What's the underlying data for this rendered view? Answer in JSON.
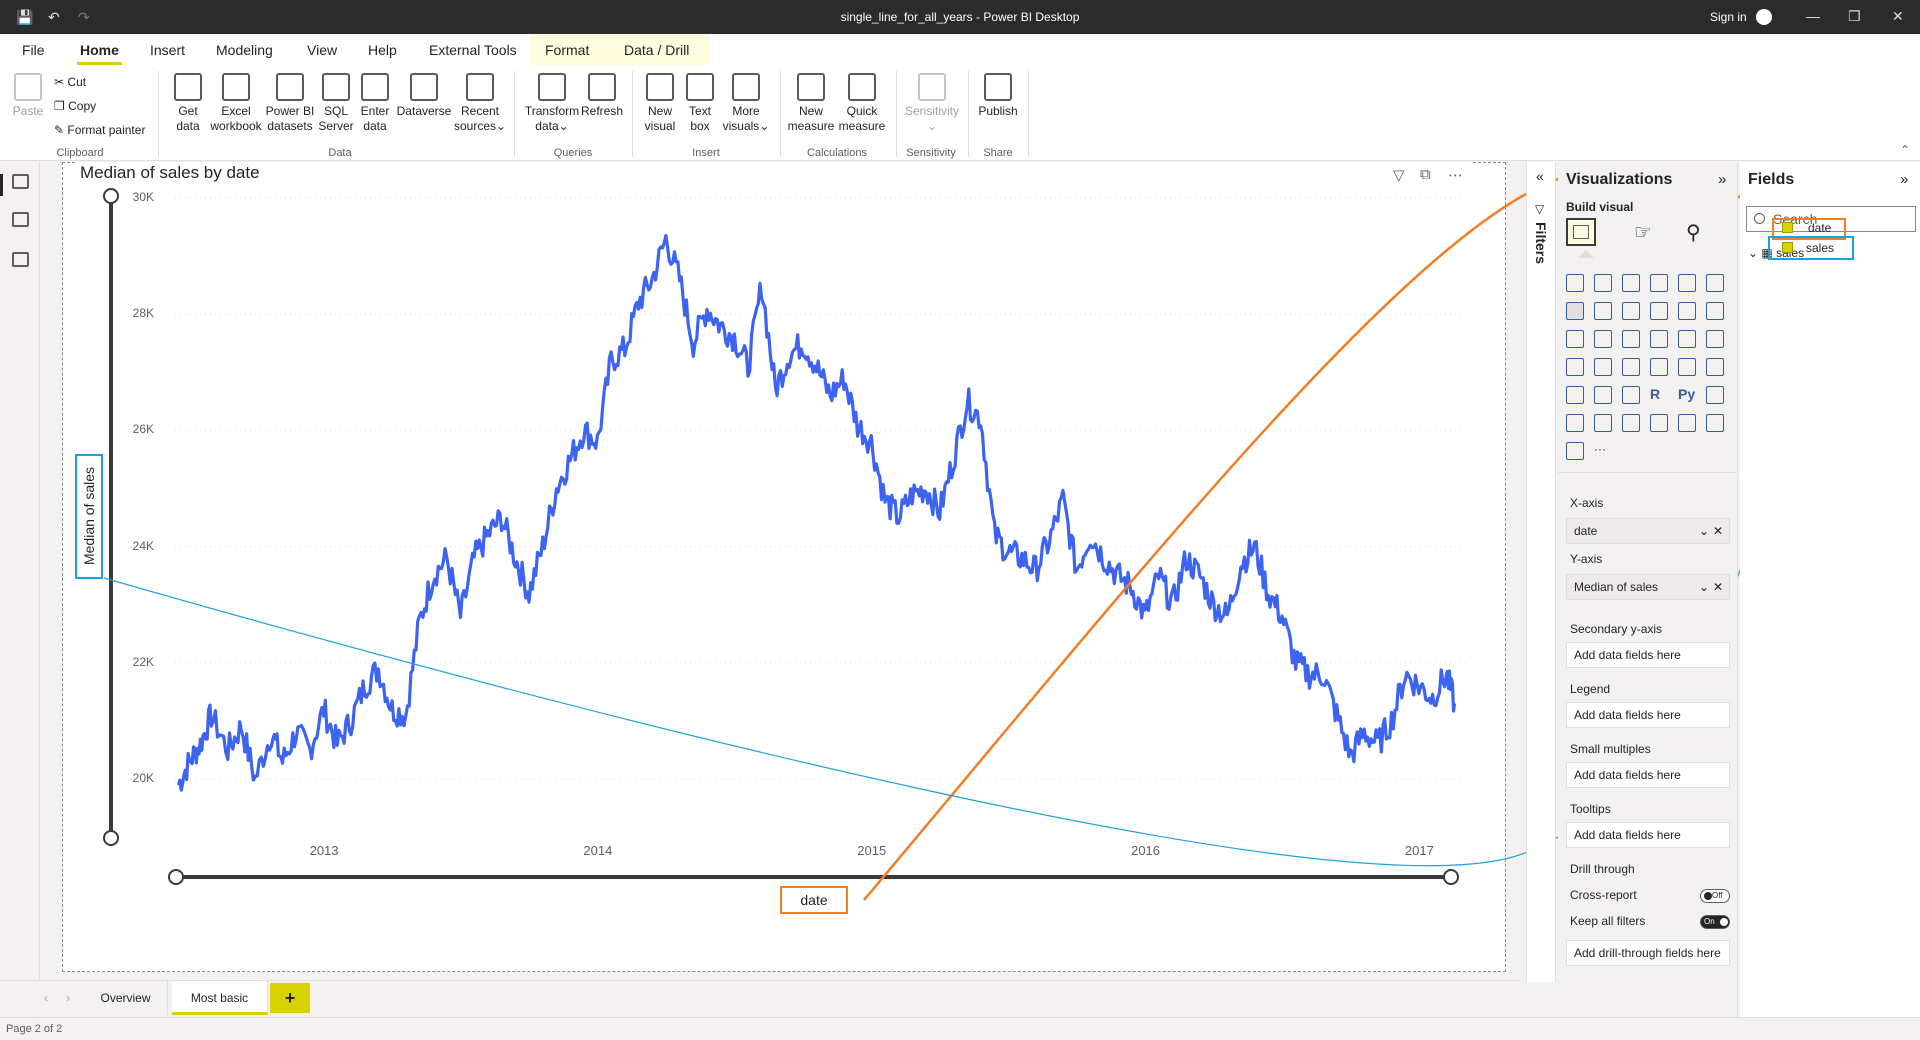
{
  "window": {
    "title": "single_line_for_all_years - Power BI Desktop",
    "sign_in": "Sign in"
  },
  "menu": {
    "items": [
      "File",
      "Home",
      "Insert",
      "Modeling",
      "View",
      "Help",
      "External Tools",
      "Format",
      "Data / Drill"
    ],
    "active": "Home"
  },
  "ribbon": {
    "clipboard": {
      "paste": "Paste",
      "cut": "Cut",
      "copy": "Copy",
      "format_painter": "Format painter",
      "group": "Clipboard"
    },
    "data": {
      "get_data_1": "Get",
      "get_data_2": "data",
      "excel_1": "Excel",
      "excel_2": "workbook",
      "pbi_1": "Power BI",
      "pbi_2": "datasets",
      "sql_1": "SQL",
      "sql_2": "Server",
      "enter_1": "Enter",
      "enter_2": "data",
      "dataverse": "Dataverse",
      "recent_1": "Recent",
      "recent_2": "sources",
      "group": "Data"
    },
    "queries": {
      "transform_1": "Transform",
      "transform_2": "data",
      "refresh": "Refresh",
      "group": "Queries"
    },
    "insert": {
      "newvis_1": "New",
      "newvis_2": "visual",
      "textbox_1": "Text",
      "textbox_2": "box",
      "more_1": "More",
      "more_2": "visuals",
      "group": "Insert"
    },
    "calculations": {
      "newm_1": "New",
      "newm_2": "measure",
      "quick_1": "Quick",
      "quick_2": "measure",
      "group": "Calculations"
    },
    "sensitivity": {
      "label": "Sensitivity",
      "group": "Sensitivity"
    },
    "share": {
      "publish": "Publish",
      "group": "Share"
    }
  },
  "visual": {
    "title": "Median of sales by date",
    "y_axis_label": "Median of sales",
    "x_axis_label": "date"
  },
  "chart_data": {
    "type": "line",
    "title": "Median of sales by date",
    "xlabel": "date",
    "ylabel": "Median of sales",
    "y_ticks": [
      "30K",
      "28K",
      "26K",
      "24K",
      "22K",
      "20K"
    ],
    "x_ticks": [
      "2013",
      "2014",
      "2015",
      "2016",
      "2017"
    ],
    "ylim": [
      19000,
      30000
    ],
    "xlim": [
      2012.6,
      2017.3
    ],
    "color": "#3d64f0",
    "series": [
      {
        "x": [
          2012.62,
          2012.66,
          2012.7,
          2012.74,
          2012.8,
          2012.85,
          2012.9,
          2012.96,
          2013.0,
          2013.05,
          2013.1,
          2013.15,
          2013.2,
          2013.25,
          2013.3,
          2013.35,
          2013.4,
          2013.45,
          2013.5,
          2013.55,
          2013.6,
          2013.65,
          2013.7,
          2013.75,
          2013.8,
          2013.85,
          2013.9,
          2013.95,
          2014.0,
          2014.05,
          2014.1,
          2014.15,
          2014.2,
          2014.25,
          2014.3,
          2014.35,
          2014.4,
          2014.45,
          2014.5,
          2014.55,
          2014.6,
          2014.65,
          2014.7,
          2014.75,
          2014.8,
          2014.85,
          2014.9,
          2014.95,
          2015.0,
          2015.05,
          2015.1,
          2015.15,
          2015.2,
          2015.25,
          2015.3,
          2015.35,
          2015.4,
          2015.45,
          2015.5,
          2015.55,
          2015.6,
          2015.65,
          2015.7,
          2015.75,
          2015.8,
          2015.85,
          2015.9,
          2015.95,
          2016.0,
          2016.05,
          2016.1,
          2016.15,
          2016.2,
          2016.25,
          2016.3,
          2016.35,
          2016.4,
          2016.45,
          2016.5,
          2016.55,
          2016.6,
          2016.65,
          2016.7,
          2016.75,
          2016.8,
          2016.85,
          2016.9,
          2016.95,
          2017.0,
          2017.05,
          2017.1,
          2017.15,
          2017.2,
          2017.25,
          2017.28
        ],
        "y": [
          19900,
          20300,
          20600,
          21100,
          20500,
          20900,
          20000,
          20800,
          20300,
          20800,
          20500,
          21200,
          20600,
          21000,
          21600,
          21900,
          21200,
          21100,
          22700,
          23500,
          23800,
          22800,
          23800,
          24200,
          24500,
          23800,
          23200,
          24000,
          25000,
          25500,
          26000,
          25800,
          27200,
          27400,
          28200,
          28600,
          29300,
          28600,
          27500,
          28100,
          27800,
          27600,
          27100,
          28500,
          26700,
          27300,
          27500,
          27100,
          26600,
          26900,
          26100,
          25800,
          24800,
          24500,
          24900,
          25000,
          24600,
          25500,
          26500,
          26200,
          24200,
          23900,
          23800,
          23600,
          24100,
          24800,
          23600,
          24200,
          23800,
          23500,
          23300,
          22800,
          23500,
          23000,
          23800,
          23500,
          23000,
          22800,
          23700,
          24000,
          23200,
          22800,
          22000,
          21800,
          21800,
          21100,
          20400,
          20800,
          20600,
          21000,
          21800,
          21600,
          21400,
          21800,
          21300
        ]
      }
    ],
    "grid": "horizontal-dotted",
    "legend": "none"
  },
  "filters": {
    "label": "Filters"
  },
  "visualizations": {
    "title": "Visualizations",
    "build_visual": "Build visual",
    "x_axis": {
      "label": "X-axis",
      "field": "date"
    },
    "y_axis": {
      "label": "Y-axis",
      "field": "Median of sales"
    },
    "secondary_y": {
      "label": "Secondary y-axis",
      "placeholder": "Add data fields here"
    },
    "legend": {
      "label": "Legend",
      "placeholder": "Add data fields here"
    },
    "small_multiples": {
      "label": "Small multiples",
      "placeholder": "Add data fields here"
    },
    "tooltips": {
      "label": "Tooltips",
      "placeholder": "Add data fields here"
    },
    "drill_through": {
      "label": "Drill through",
      "cross_report": "Cross-report",
      "cross_report_state": "Off",
      "keep_all_filters": "Keep all filters",
      "keep_all_filters_state": "On",
      "placeholder": "Add drill-through fields here"
    },
    "icon_glyphs": {
      "r": "R",
      "py": "Py",
      "more": "···"
    }
  },
  "fields": {
    "title": "Fields",
    "search_placeholder": "Search",
    "table": "sales",
    "items": [
      "date",
      "sales"
    ]
  },
  "pages": {
    "tabs": [
      "Overview",
      "Most basic"
    ],
    "active": "Most basic",
    "add": "+",
    "status": "Page 2 of 2"
  },
  "colors": {
    "accent": "#d7d200",
    "line": "#3d64f0",
    "highlight_orange": "#f07e26",
    "highlight_blue": "#1ba1e2"
  }
}
